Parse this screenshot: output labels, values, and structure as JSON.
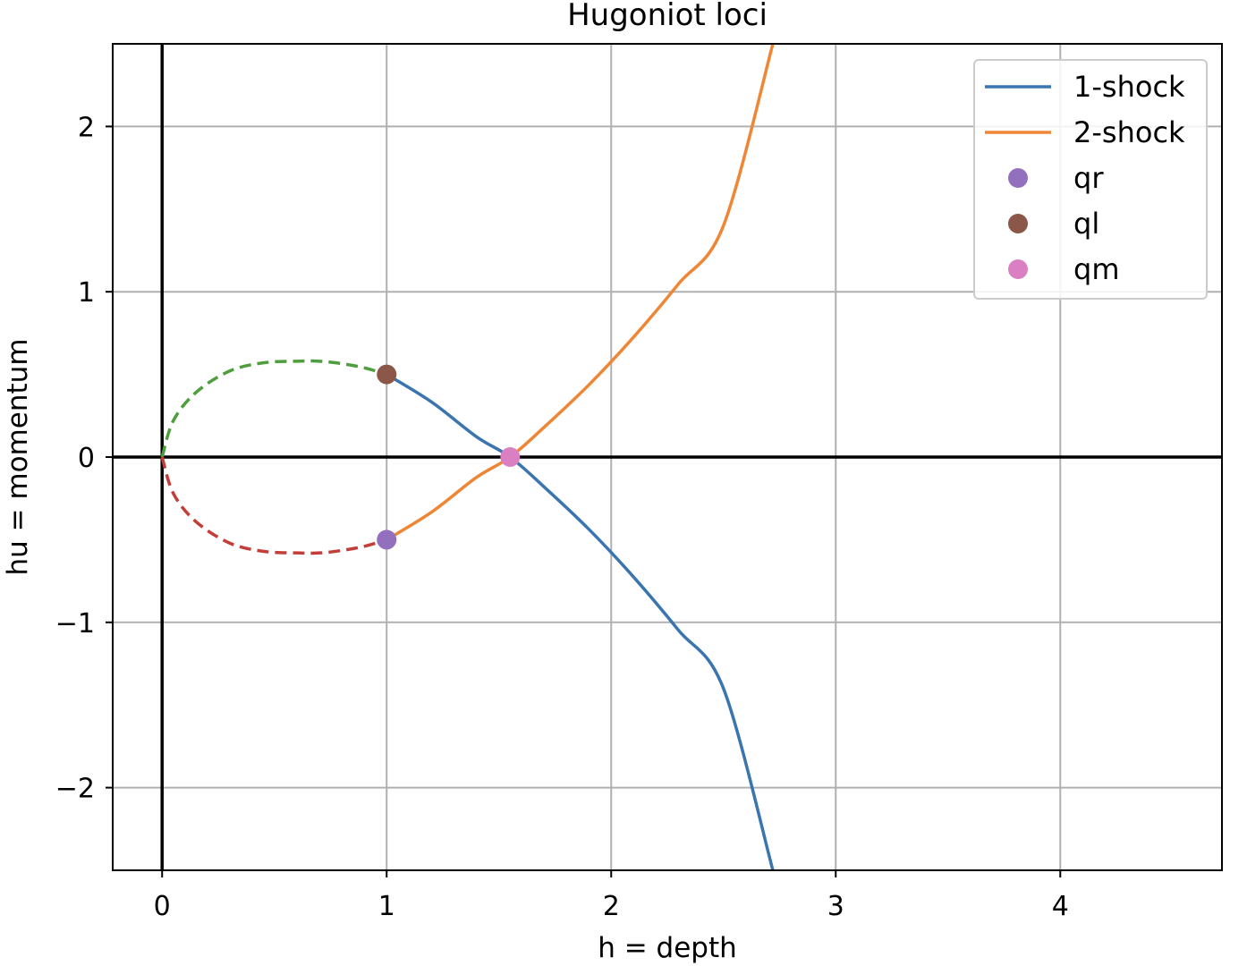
{
  "chart_data": {
    "type": "line",
    "title": "Hugoniot loci",
    "xlabel": "h = depth",
    "ylabel": "hu = momentum",
    "xlim": [
      -0.22,
      4.72
    ],
    "ylim": [
      -2.5,
      2.5
    ],
    "xticks": [
      0,
      1,
      2,
      3,
      4
    ],
    "yticks": [
      -2,
      -1,
      0,
      1,
      2
    ],
    "xtick_labels": [
      "0",
      "1",
      "2",
      "3",
      "4"
    ],
    "ytick_labels": [
      "−2",
      "−1",
      "0",
      "1",
      "2"
    ],
    "grid": true,
    "legend_placement": "top-right",
    "series": [
      {
        "name": "1-shock",
        "kind": "line",
        "style": "solid",
        "color": "#3a75b0",
        "x": [
          1.0,
          1.2,
          1.4,
          1.55,
          1.7,
          1.9,
          2.1,
          2.3,
          2.5,
          2.72
        ],
        "y": [
          0.5,
          0.333,
          0.123,
          0.0,
          -0.179,
          -0.436,
          -0.726,
          -1.048,
          -1.4,
          -2.5
        ]
      },
      {
        "name": "2-shock",
        "kind": "line",
        "style": "solid",
        "color": "#ef8636",
        "x": [
          1.0,
          1.2,
          1.4,
          1.55,
          1.7,
          1.9,
          2.1,
          2.3,
          2.5,
          2.72
        ],
        "y": [
          -0.5,
          -0.333,
          -0.123,
          0.0,
          0.179,
          0.436,
          0.726,
          1.048,
          1.4,
          2.5
        ]
      },
      {
        "kind": "line",
        "style": "dashed",
        "color": "#4e9e3d",
        "x": [
          0.0,
          0.05,
          0.15,
          0.3,
          0.45,
          0.6,
          0.7,
          0.8,
          0.9,
          1.0
        ],
        "y": [
          0.0,
          0.22,
          0.39,
          0.52,
          0.57,
          0.58,
          0.58,
          0.565,
          0.54,
          0.5
        ]
      },
      {
        "kind": "line",
        "style": "dashed",
        "color": "#c43e39",
        "x": [
          0.0,
          0.05,
          0.15,
          0.3,
          0.45,
          0.6,
          0.7,
          0.8,
          0.9,
          1.0
        ],
        "y": [
          0.0,
          -0.22,
          -0.39,
          -0.52,
          -0.57,
          -0.58,
          -0.58,
          -0.565,
          -0.54,
          -0.5
        ]
      },
      {
        "name": "qr",
        "kind": "point",
        "color": "#9370bd",
        "x": [
          1.0
        ],
        "y": [
          -0.5
        ]
      },
      {
        "name": "ql",
        "kind": "point",
        "color": "#8b5748",
        "x": [
          1.0
        ],
        "y": [
          0.5
        ]
      },
      {
        "name": "qm",
        "kind": "point",
        "color": "#da7fc1",
        "x": [
          1.55
        ],
        "y": [
          0.0
        ]
      }
    ],
    "reference_lines": [
      {
        "orientation": "vertical",
        "value": 0,
        "color": "#000000"
      },
      {
        "orientation": "horizontal",
        "value": 0,
        "color": "#000000"
      }
    ]
  }
}
